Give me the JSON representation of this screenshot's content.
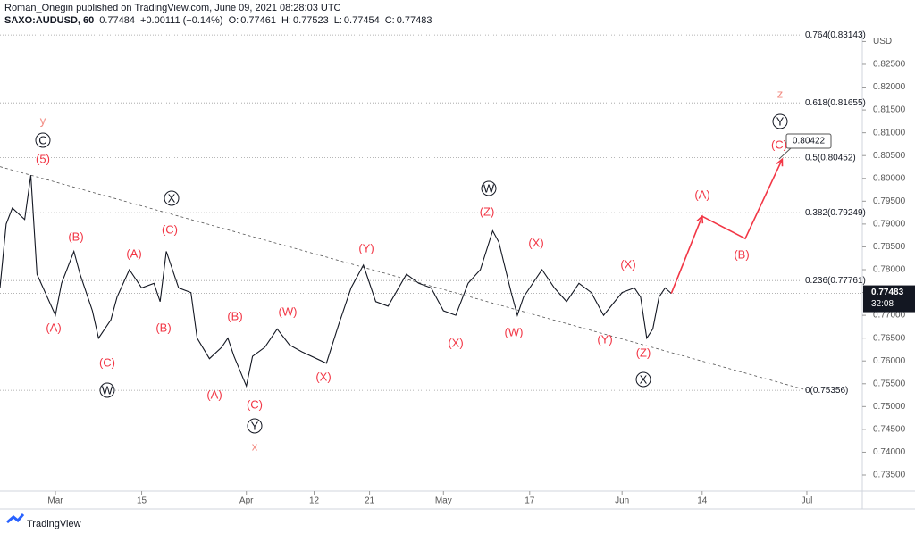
{
  "header": {
    "author_line": "Roman_Onegin published on TradingView.com, June 09, 2021 08:28:03 UTC",
    "symbol": "SAXO:AUDUSD, 60",
    "last": "0.77484",
    "change": "+0.00111 (+0.14%)",
    "open_label": "O:",
    "open": "0.77461",
    "high_label": "H:",
    "high": "0.77523",
    "low_label": "L:",
    "low": "0.77454",
    "close_label": "C:",
    "close": "0.77483"
  },
  "chart_data": {
    "type": "line",
    "color": "#131722",
    "x": [
      "2021-02-20",
      "2021-02-21",
      "2021-02-22",
      "2021-02-24",
      "2021-02-25",
      "2021-02-26",
      "2021-03-01",
      "2021-03-02",
      "2021-03-04",
      "2021-03-05",
      "2021-03-07",
      "2021-03-08",
      "2021-03-10",
      "2021-03-11",
      "2021-03-13",
      "2021-03-15",
      "2021-03-17",
      "2021-03-18",
      "2021-03-19",
      "2021-03-21",
      "2021-03-23",
      "2021-03-24",
      "2021-03-26",
      "2021-03-28",
      "2021-03-29",
      "2021-03-30",
      "2021-04-01",
      "2021-04-02",
      "2021-04-04",
      "2021-04-06",
      "2021-04-08",
      "2021-04-10",
      "2021-04-14",
      "2021-04-16",
      "2021-04-18",
      "2021-04-20",
      "2021-04-22",
      "2021-04-24",
      "2021-04-27",
      "2021-04-29",
      "2021-05-01",
      "2021-05-03",
      "2021-05-05",
      "2021-05-07",
      "2021-05-09",
      "2021-05-11",
      "2021-05-12",
      "2021-05-14",
      "2021-05-15",
      "2021-05-16",
      "2021-05-19",
      "2021-05-21",
      "2021-05-23",
      "2021-05-25",
      "2021-05-27",
      "2021-05-29",
      "2021-06-01",
      "2021-06-03",
      "2021-06-04",
      "2021-06-05",
      "2021-06-06",
      "2021-06-07",
      "2021-06-08",
      "2021-06-09"
    ],
    "values": [
      0.776,
      0.79,
      0.7935,
      0.791,
      0.8007,
      0.779,
      0.77,
      0.777,
      0.784,
      0.779,
      0.771,
      0.765,
      0.769,
      0.774,
      0.78,
      0.776,
      0.777,
      0.773,
      0.784,
      0.776,
      0.775,
      0.765,
      0.7605,
      0.763,
      0.765,
      0.761,
      0.7545,
      0.761,
      0.763,
      0.767,
      0.7635,
      0.762,
      0.7595,
      0.768,
      0.776,
      0.781,
      0.773,
      0.772,
      0.779,
      0.777,
      0.776,
      0.771,
      0.77,
      0.777,
      0.78,
      0.7885,
      0.786,
      0.775,
      0.77,
      0.774,
      0.78,
      0.776,
      0.773,
      0.777,
      0.775,
      0.77,
      0.775,
      0.776,
      0.774,
      0.765,
      0.767,
      0.774,
      0.776,
      0.7748
    ],
    "projection": {
      "color": "#f23645",
      "x": [
        "2021-06-09",
        "2021-06-14",
        "2021-06-21",
        "2021-06-27"
      ],
      "values": [
        0.7748,
        0.7917,
        0.7868,
        0.8042
      ]
    },
    "trendline": {
      "x": [
        "2021-02-25",
        "2021-07-01"
      ],
      "values": [
        0.8007,
        0.7536
      ]
    },
    "fib_levels": [
      {
        "value": 0.83143,
        "label": "0.764(0.83143)"
      },
      {
        "value": 0.81655,
        "label": "0.618(0.81655)"
      },
      {
        "value": 0.80452,
        "label": "0.5(0.80452)"
      },
      {
        "value": 0.79249,
        "label": "0.382(0.79249)"
      },
      {
        "value": 0.77761,
        "label": "0.236(0.77761)"
      },
      {
        "value": 0.75356,
        "label": "0(0.75356)"
      }
    ],
    "xlim": [
      "2021-02-20",
      "2021-07-10"
    ],
    "xticks": [
      {
        "value": "2021-03-01",
        "label": "Mar"
      },
      {
        "value": "2021-03-15",
        "label": "15"
      },
      {
        "value": "2021-04-01",
        "label": "Apr"
      },
      {
        "value": "2021-04-12",
        "label": "12"
      },
      {
        "value": "2021-04-21",
        "label": "21"
      },
      {
        "value": "2021-05-03",
        "label": "May"
      },
      {
        "value": "2021-05-17",
        "label": "17"
      },
      {
        "value": "2021-06-01",
        "label": "Jun"
      },
      {
        "value": "2021-06-14",
        "label": "14"
      },
      {
        "value": "2021-07-01",
        "label": "Jul"
      }
    ],
    "ylim": [
      0.73148,
      0.83243
    ],
    "yticks": [
      {
        "value": 0.735,
        "label": "0.73500"
      },
      {
        "value": 0.74,
        "label": "0.74000"
      },
      {
        "value": 0.745,
        "label": "0.74500"
      },
      {
        "value": 0.75,
        "label": "0.75000"
      },
      {
        "value": 0.755,
        "label": "0.75500"
      },
      {
        "value": 0.76,
        "label": "0.76000"
      },
      {
        "value": 0.765,
        "label": "0.76500"
      },
      {
        "value": 0.77,
        "label": "0.77000"
      },
      {
        "value": 0.775,
        "label": "0.77500"
      },
      {
        "value": 0.78,
        "label": "0.78000"
      },
      {
        "value": 0.785,
        "label": "0.78500"
      },
      {
        "value": 0.79,
        "label": "0.79000"
      },
      {
        "value": 0.795,
        "label": "0.79500"
      },
      {
        "value": 0.8,
        "label": "0.80000"
      },
      {
        "value": 0.805,
        "label": "0.80500"
      },
      {
        "value": 0.81,
        "label": "0.81000"
      },
      {
        "value": 0.815,
        "label": "0.81500"
      },
      {
        "value": 0.82,
        "label": "0.82000"
      },
      {
        "value": 0.825,
        "label": "0.82500"
      },
      {
        "value": 0.83,
        "label": "USD"
      }
    ],
    "price_tag": "0.77483",
    "countdown": "32:08",
    "target_tag": "0.80422",
    "wave_labels": [
      "y",
      "C",
      "(5)",
      "(A)",
      "(B)",
      "(C)",
      "W",
      "(A)",
      "(B)",
      "(C)",
      "X",
      "(A)",
      "(B)",
      "(C)",
      "Y",
      "x",
      "(W)",
      "(X)",
      "(Y)",
      "(X)",
      "W",
      "(Z)",
      "(W)",
      "(X)",
      "(Y)",
      "(X)",
      "(Z)",
      "X",
      "(A)",
      "(B)",
      "(C)",
      "Y",
      "z"
    ]
  },
  "footer": {
    "brand": "TradingView"
  }
}
